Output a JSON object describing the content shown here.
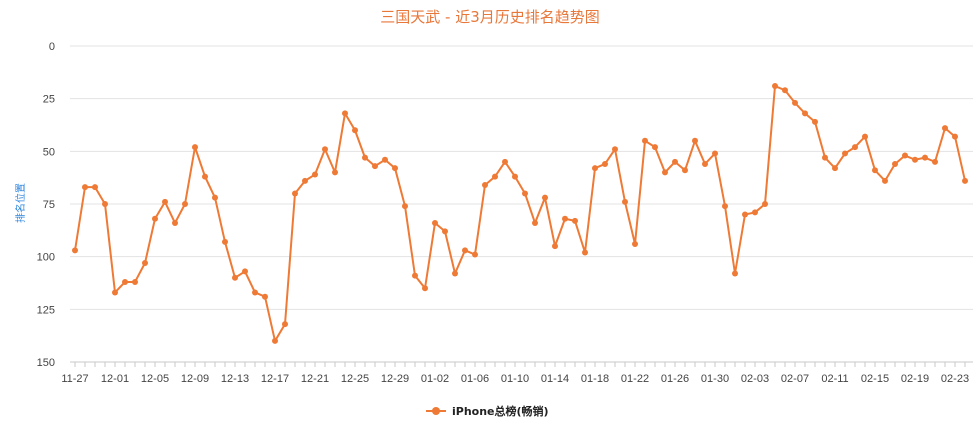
{
  "chart_data": {
    "type": "line",
    "title": "三国天武 - 近3月历史排名趋势图",
    "ylabel": "排名位置",
    "xlabel": "",
    "ylim": [
      0,
      150
    ],
    "y_reversed": true,
    "y_ticks": [
      0,
      25,
      50,
      75,
      100,
      125,
      150
    ],
    "grid": true,
    "legend_position": "bottom",
    "color": "#ee7a36",
    "x_tick_labels": [
      "11-27",
      "12-01",
      "12-05",
      "12-09",
      "12-13",
      "12-17",
      "12-21",
      "12-25",
      "12-29",
      "01-02",
      "01-06",
      "01-10",
      "01-14",
      "01-18",
      "01-22",
      "01-26",
      "01-30",
      "02-03",
      "02-07",
      "02-11",
      "02-15",
      "02-19",
      "02-23"
    ],
    "series": [
      {
        "name": "iPhone总榜(畅销)",
        "values": [
          97,
          67,
          67,
          75,
          117,
          112,
          112,
          103,
          82,
          74,
          84,
          75,
          48,
          62,
          72,
          93,
          110,
          107,
          117,
          119,
          140,
          132,
          70,
          64,
          61,
          49,
          60,
          32,
          40,
          53,
          57,
          54,
          58,
          76,
          109,
          115,
          84,
          88,
          108,
          97,
          99,
          66,
          62,
          55,
          62,
          70,
          84,
          72,
          95,
          82,
          83,
          98,
          58,
          56,
          49,
          74,
          94,
          45,
          48,
          60,
          55,
          59,
          45,
          56,
          51,
          76,
          108,
          80,
          79,
          75,
          19,
          21,
          27,
          32,
          36,
          53,
          58,
          51,
          48,
          43,
          59,
          64,
          56,
          52,
          54,
          53,
          55,
          39,
          43,
          64
        ]
      }
    ]
  }
}
